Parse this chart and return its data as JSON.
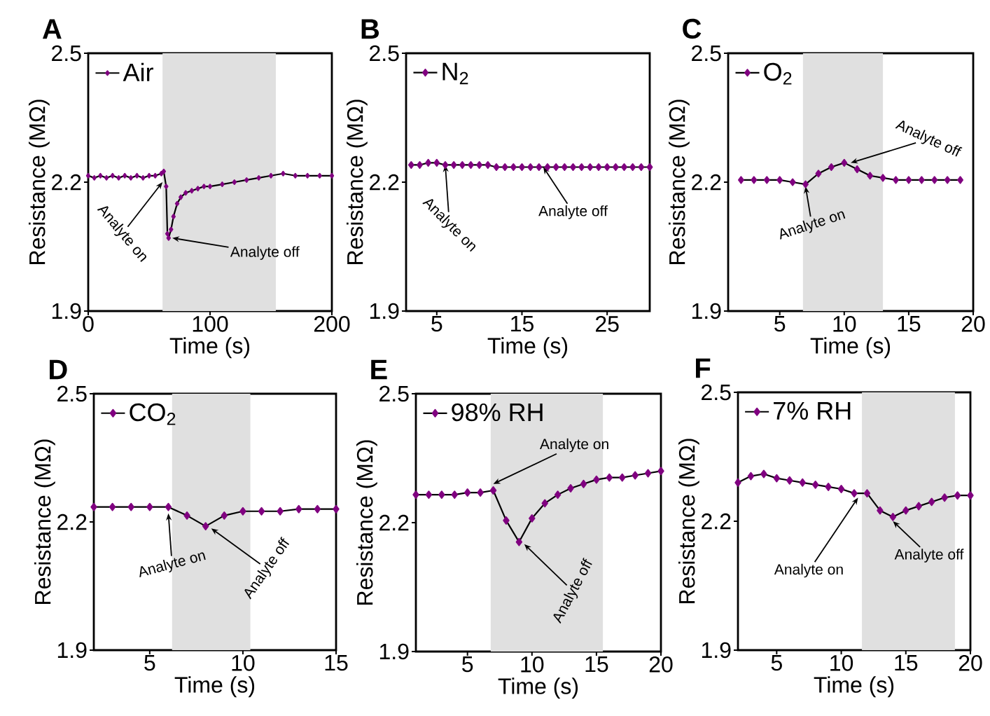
{
  "chart_data": [
    {
      "type": "line",
      "title": "A",
      "xlabel": "Time (s)",
      "ylabel": "Resistance (MΩ)",
      "xlim": [
        0,
        200
      ],
      "xticks": [
        0,
        100,
        200
      ],
      "ylim": [
        1.9,
        2.5
      ],
      "yticks": [
        1.9,
        2.2,
        2.5
      ],
      "legend": "top left",
      "marker": "diamond",
      "x": [
        0,
        5,
        10,
        15,
        20,
        25,
        30,
        35,
        40,
        45,
        50,
        55,
        60,
        62,
        64,
        65,
        66,
        68,
        70,
        73,
        76,
        80,
        85,
        90,
        95,
        100,
        110,
        120,
        130,
        140,
        150,
        160,
        170,
        180,
        190,
        200
      ],
      "series": [
        {
          "name": "Air",
          "color": "#800080",
          "values": [
            2.215,
            2.21,
            2.215,
            2.21,
            2.215,
            2.21,
            2.215,
            2.21,
            2.215,
            2.21,
            2.215,
            2.215,
            2.22,
            2.225,
            2.19,
            2.08,
            2.07,
            2.09,
            2.12,
            2.15,
            2.165,
            2.175,
            2.18,
            2.185,
            2.19,
            2.19,
            2.195,
            2.2,
            2.205,
            2.21,
            2.215,
            2.22,
            2.215,
            2.215,
            2.215,
            2.215
          ]
        }
      ],
      "bands": [
        {
          "axis": "x",
          "from": 61,
          "to": 154,
          "color": "#e0e0e0"
        }
      ],
      "annotations": [
        {
          "text": "Analyte on",
          "x": 61,
          "y": 2.2
        },
        {
          "text": "Analyte off",
          "x": 69,
          "y": 2.07
        }
      ]
    },
    {
      "type": "line",
      "title": "B",
      "xlabel": "Time (s)",
      "ylabel": "Resistance (MΩ)",
      "xlim": [
        1.4,
        30
      ],
      "xticks": [
        5,
        15,
        25
      ],
      "ylim": [
        1.9,
        2.5
      ],
      "yticks": [
        1.9,
        2.2,
        2.5
      ],
      "legend": "top left",
      "marker": "diamond",
      "x": [
        2,
        3,
        4,
        5,
        6,
        7,
        8,
        9,
        10,
        11,
        12,
        13,
        14,
        15,
        16,
        17,
        18,
        19,
        20,
        21,
        22,
        23,
        24,
        25,
        26,
        27,
        28,
        29,
        30
      ],
      "series": [
        {
          "name": "N$_{2}$",
          "color": "#800080",
          "values": [
            2.24,
            2.24,
            2.245,
            2.245,
            2.24,
            2.24,
            2.24,
            2.24,
            2.24,
            2.24,
            2.235,
            2.235,
            2.235,
            2.235,
            2.235,
            2.235,
            2.235,
            2.235,
            2.235,
            2.235,
            2.235,
            2.235,
            2.235,
            2.235,
            2.235,
            2.235,
            2.235,
            2.235,
            2.235
          ]
        }
      ],
      "annotations": [
        {
          "text": "Analyte on",
          "x": 6,
          "y": 2.24
        },
        {
          "text": "Analyte off",
          "x": 17.5,
          "y": 2.235
        }
      ]
    },
    {
      "type": "line",
      "title": "C",
      "xlabel": "Time (s)",
      "ylabel": "Resistance (MΩ)",
      "xlim": [
        1,
        20
      ],
      "xticks": [
        5,
        10,
        15,
        20
      ],
      "ylim": [
        1.9,
        2.5
      ],
      "yticks": [
        1.9,
        2.2,
        2.5
      ],
      "legend": "top left",
      "marker": "diamond",
      "x": [
        2,
        3,
        4,
        5,
        6,
        7,
        8,
        9,
        10,
        11,
        12,
        13,
        14,
        15,
        16,
        17,
        18,
        19
      ],
      "series": [
        {
          "name": "O$_{2}$",
          "color": "#800080",
          "values": [
            2.205,
            2.205,
            2.205,
            2.205,
            2.2,
            2.195,
            2.22,
            2.235,
            2.245,
            2.23,
            2.215,
            2.21,
            2.205,
            2.205,
            2.205,
            2.205,
            2.205,
            2.205
          ]
        }
      ],
      "bands": [
        {
          "axis": "x",
          "from": 6.8,
          "to": 13,
          "color": "#e0e0e0"
        }
      ],
      "annotations": [
        {
          "text": "Analyte on",
          "x": 7,
          "y": 2.19
        },
        {
          "text": "Analyte off",
          "x": 10.5,
          "y": 2.245
        }
      ]
    },
    {
      "type": "line",
      "title": "D",
      "xlabel": "Time (s)",
      "ylabel": "Resistance (MΩ)",
      "xlim": [
        2,
        15
      ],
      "xticks": [
        5,
        10,
        15
      ],
      "ylim": [
        1.9,
        2.5
      ],
      "yticks": [
        1.9,
        2.2,
        2.5
      ],
      "legend": "top left",
      "marker": "diamond",
      "x": [
        2,
        3,
        4,
        5,
        6,
        7,
        8,
        9,
        10,
        11,
        12,
        13,
        14,
        15
      ],
      "series": [
        {
          "name": "CO$_{2}$",
          "color": "#800080",
          "values": [
            2.235,
            2.235,
            2.235,
            2.235,
            2.235,
            2.215,
            2.19,
            2.215,
            2.225,
            2.225,
            2.225,
            2.23,
            2.23,
            2.23
          ]
        }
      ],
      "bands": [
        {
          "axis": "x",
          "from": 6.2,
          "to": 10.4,
          "color": "#e0e0e0"
        }
      ],
      "annotations": [
        {
          "text": "Analyte on",
          "x": 6,
          "y": 2.22
        },
        {
          "text": "Analyte off",
          "x": 8.3,
          "y": 2.185
        }
      ]
    },
    {
      "type": "line",
      "title": "E",
      "xlabel": "Time (s)",
      "ylabel": "Resistance (MΩ)",
      "xlim": [
        1,
        20
      ],
      "xticks": [
        5,
        10,
        15,
        20
      ],
      "ylim": [
        1.9,
        2.5
      ],
      "yticks": [
        1.9,
        2.2,
        2.5
      ],
      "legend": "top left",
      "marker": "diamond",
      "x": [
        1,
        2,
        3,
        4,
        5,
        6,
        7,
        8,
        9,
        10,
        11,
        12,
        13,
        14,
        15,
        16,
        17,
        18,
        19,
        20
      ],
      "series": [
        {
          "name": "98% RH",
          "color": "#800080",
          "values": [
            2.265,
            2.265,
            2.265,
            2.265,
            2.27,
            2.27,
            2.275,
            2.205,
            2.155,
            2.21,
            2.245,
            2.265,
            2.28,
            2.29,
            2.3,
            2.305,
            2.305,
            2.31,
            2.315,
            2.32
          ]
        }
      ],
      "bands": [
        {
          "axis": "x",
          "from": 6.8,
          "to": 15.5,
          "color": "#e0e0e0"
        }
      ],
      "annotations": [
        {
          "text": "Analyte on",
          "x": 7,
          "y": 2.29
        },
        {
          "text": "Analyte off",
          "x": 9.4,
          "y": 2.15
        }
      ]
    },
    {
      "type": "line",
      "title": "F",
      "xlabel": "Time (s)",
      "ylabel": "Resistance (MΩ)",
      "xlim": [
        2,
        20
      ],
      "xticks": [
        5,
        10,
        15,
        20
      ],
      "ylim": [
        1.9,
        2.5
      ],
      "yticks": [
        1.9,
        2.2,
        2.5
      ],
      "legend": "top left",
      "marker": "diamond",
      "x": [
        2,
        3,
        4,
        5,
        6,
        7,
        8,
        9,
        10,
        11,
        12,
        13,
        14,
        15,
        16,
        17,
        18,
        19,
        20
      ],
      "series": [
        {
          "name": "7% RH",
          "color": "#800080",
          "values": [
            2.29,
            2.305,
            2.31,
            2.3,
            2.295,
            2.29,
            2.285,
            2.28,
            2.275,
            2.265,
            2.265,
            2.225,
            2.21,
            2.225,
            2.235,
            2.245,
            2.255,
            2.26,
            2.26
          ]
        }
      ],
      "bands": [
        {
          "axis": "x",
          "from": 11.6,
          "to": 18.8,
          "color": "#e0e0e0"
        }
      ],
      "annotations": [
        {
          "text": "Analyte on",
          "x": 11.3,
          "y": 2.255
        },
        {
          "text": "Analyte off",
          "x": 14,
          "y": 2.2
        }
      ]
    }
  ]
}
